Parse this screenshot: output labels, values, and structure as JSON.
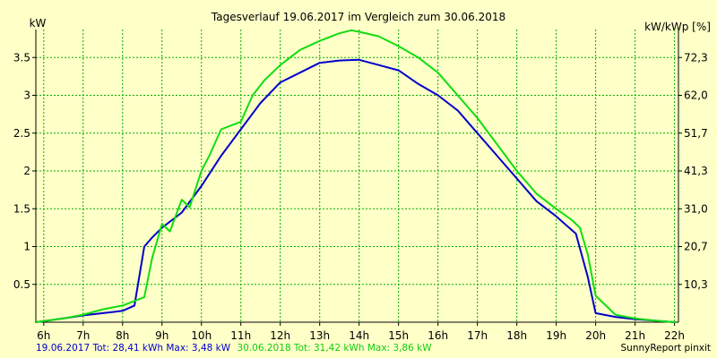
{
  "chart_data": {
    "type": "line",
    "title": "Tagesverlauf 19.06.2017 im Vergleich zum 30.06.2018",
    "ylabel_left": "kW",
    "ylabel_right": "kW/kWp [%]",
    "xlim": [
      5.8,
      22.1
    ],
    "ylim": [
      0,
      3.87
    ],
    "x_ticks": [
      6,
      7,
      8,
      9,
      10,
      11,
      12,
      13,
      14,
      15,
      16,
      17,
      18,
      19,
      20,
      21,
      22
    ],
    "x_tick_labels": [
      "6h",
      "7h",
      "8h",
      "9h",
      "10h",
      "11h",
      "12h",
      "13h",
      "14h",
      "15h",
      "16h",
      "17h",
      "18h",
      "19h",
      "20h",
      "21h",
      "22h"
    ],
    "y_ticks_left": [
      0.5,
      1,
      1.5,
      2,
      2.5,
      3,
      3.5
    ],
    "y_tick_labels_left": [
      "0.5",
      "1",
      "1.5",
      "2",
      "2.5",
      "3",
      "3.5"
    ],
    "y_ticks_right": [
      0.5,
      1,
      1.5,
      2,
      2.5,
      3,
      3.5
    ],
    "y_tick_labels_right": [
      "10,3",
      "20,7",
      "31,0",
      "41,3",
      "51,7",
      "62,0",
      "72,3"
    ],
    "grid": true,
    "series": [
      {
        "name": "19.06.2017",
        "color": "#0000cc",
        "x": [
          5.8,
          6.5,
          7.0,
          7.5,
          8.0,
          8.3,
          8.55,
          8.75,
          9.0,
          9.5,
          10.0,
          10.5,
          11.0,
          11.5,
          12.0,
          12.5,
          13.0,
          13.5,
          14.0,
          14.5,
          15.0,
          15.5,
          16.0,
          16.5,
          17.0,
          17.5,
          18.0,
          18.5,
          19.0,
          19.5,
          19.8,
          20.0,
          20.5,
          21.0,
          21.5,
          22.0
        ],
        "values": [
          0.0,
          0.05,
          0.09,
          0.12,
          0.15,
          0.22,
          1.0,
          1.12,
          1.25,
          1.45,
          1.8,
          2.2,
          2.55,
          2.9,
          3.17,
          3.3,
          3.43,
          3.46,
          3.47,
          3.4,
          3.33,
          3.15,
          3.0,
          2.8,
          2.5,
          2.2,
          1.9,
          1.6,
          1.4,
          1.17,
          0.6,
          0.12,
          0.07,
          0.04,
          0.02,
          0.0
        ]
      },
      {
        "name": "30.06.2018",
        "color": "#11dd11",
        "x": [
          5.8,
          6.5,
          7.0,
          7.5,
          8.0,
          8.3,
          8.55,
          8.75,
          9.0,
          9.2,
          9.5,
          9.7,
          10.0,
          10.2,
          10.5,
          11.0,
          11.3,
          11.6,
          12.0,
          12.5,
          13.0,
          13.5,
          13.8,
          14.0,
          14.5,
          15.0,
          15.5,
          16.0,
          16.5,
          17.0,
          17.5,
          18.0,
          18.5,
          19.0,
          19.4,
          19.6,
          19.8,
          20.0,
          20.5,
          21.0,
          21.5,
          22.0
        ],
        "values": [
          0.0,
          0.05,
          0.1,
          0.17,
          0.22,
          0.28,
          0.33,
          0.85,
          1.3,
          1.2,
          1.62,
          1.52,
          2.0,
          2.2,
          2.55,
          2.65,
          3.0,
          3.2,
          3.4,
          3.6,
          3.72,
          3.82,
          3.86,
          3.84,
          3.78,
          3.65,
          3.5,
          3.3,
          3.0,
          2.7,
          2.35,
          2.0,
          1.7,
          1.5,
          1.35,
          1.25,
          0.9,
          0.35,
          0.1,
          0.05,
          0.02,
          0.0
        ]
      }
    ]
  },
  "footer": {
    "left_line_1": "19.06.2017 Tot: 28,41 kWh Max: 3,48 kW",
    "left_line_2": "30.06.2018 Tot: 31,42 kWh Max: 3,86 kW",
    "right": "SunnyReport pinxit"
  }
}
